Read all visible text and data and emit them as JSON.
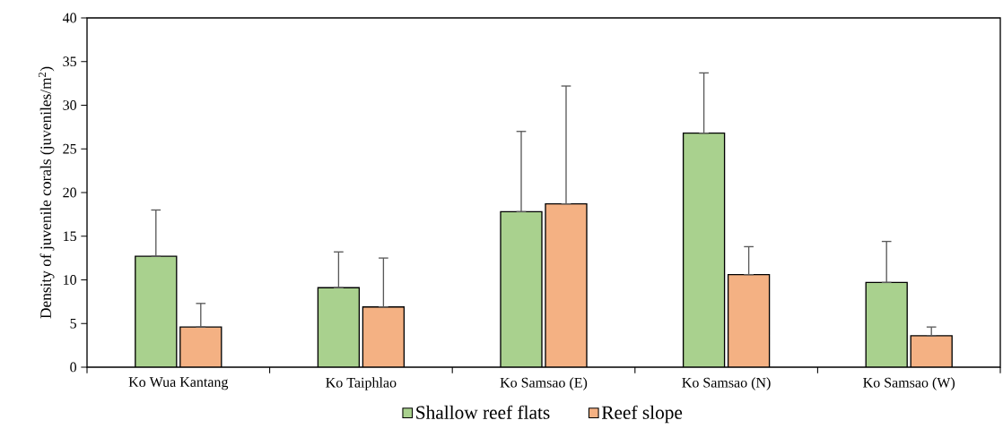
{
  "chart_data": {
    "type": "bar",
    "ylabel": "Density of juvenile corals  (juveniles/m$^{2}$)",
    "categories": [
      "Ko Wua Kantang",
      "Ko Taiphlao",
      "Ko Samsao (E)",
      "Ko Samsao (N)",
      "Ko Samsao (W)"
    ],
    "series": [
      {
        "name": "Shallow reef flats",
        "color": "#a9d18e",
        "values": [
          12.7,
          9.1,
          17.8,
          26.8,
          9.7
        ],
        "errors": [
          [
            12.7,
            18.0
          ],
          [
            9.1,
            13.2
          ],
          [
            17.8,
            27.0
          ],
          [
            26.8,
            33.7
          ],
          [
            9.7,
            14.4
          ]
        ]
      },
      {
        "name": "Reef slope",
        "color": "#f4b183",
        "values": [
          4.6,
          6.9,
          18.7,
          10.6,
          3.6
        ],
        "errors": [
          [
            4.6,
            7.3
          ],
          [
            6.9,
            12.5
          ],
          [
            18.7,
            32.2
          ],
          [
            10.6,
            13.8
          ],
          [
            3.6,
            4.6
          ]
        ]
      }
    ],
    "ylim": [
      0,
      40
    ],
    "yticks": [
      0,
      5,
      10,
      15,
      20,
      25,
      30,
      35,
      40
    ],
    "grid": false,
    "legend": "bottom"
  }
}
